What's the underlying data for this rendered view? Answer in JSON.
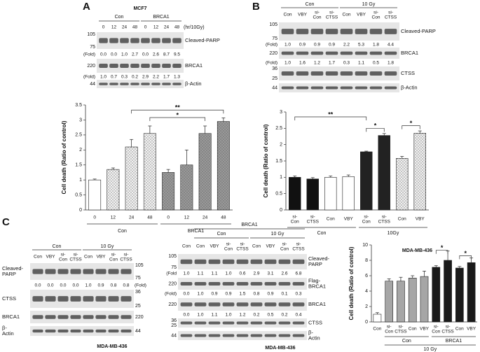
{
  "panels": [
    "A",
    "B",
    "C"
  ],
  "blots": [
    {
      "title": "MCF7",
      "groups": [
        "Con",
        "BRCA1"
      ],
      "lanes": [
        "0",
        "12",
        "24",
        "48",
        "0",
        "12",
        "24",
        "48"
      ],
      "unit": "(hr/10Gy)",
      "rows": [
        {
          "label": "Cleaved-PARP",
          "markers": [
            105,
            75
          ],
          "fold_label": "(Fold)",
          "fold": [
            "0.0",
            "0.0",
            "1.0",
            "2.7",
            "0.0",
            "2.6",
            "8.7",
            "9.5"
          ]
        },
        {
          "label": "BRCA1",
          "markers": [
            220
          ],
          "fold_label": "(Fold)",
          "fold": [
            "1.0",
            "0.7",
            "0.3",
            "0.2",
            "2.9",
            "2.2",
            "1.7",
            "1.3"
          ]
        },
        {
          "label": "β-Actin",
          "markers": [
            44
          ]
        }
      ]
    },
    {
      "groups": [
        "Con",
        "10 Gy"
      ],
      "lanes": [
        "Con",
        "VBY",
        "si-Con",
        "si-CTSS",
        "Con",
        "VBY",
        "si-Con",
        "si-CTSS"
      ],
      "rows": [
        {
          "label": "Cleaved-PARP",
          "markers": [
            105,
            75
          ],
          "fold_label": "(Fold)",
          "fold": [
            "1.0",
            "0.9",
            "0.9",
            "0.9",
            "2.2",
            "5.3",
            "1.8",
            "4.4"
          ]
        },
        {
          "label": "BRCA1",
          "markers": [
            220
          ],
          "fold_label": "(Fold)",
          "fold": [
            "1.0",
            "1.6",
            "1.2",
            "1.7",
            "0.3",
            "1.1",
            "0.5",
            "1.8"
          ]
        },
        {
          "label": "CTSS",
          "markers": [
            36,
            25
          ]
        },
        {
          "label": "β-Actin",
          "markers": [
            44
          ]
        }
      ]
    },
    {
      "groups": [
        "Con",
        "10 Gy"
      ],
      "lanes": [
        "Con",
        "VBY",
        "si-Con",
        "si-CTSS",
        "Con",
        "VBY",
        "si-Con",
        "si-CTSS"
      ],
      "rows": [
        {
          "label": "Cleaved-PARP",
          "markers": [
            105,
            75
          ],
          "fold_label": "(Fold)",
          "fold": [
            "0.0",
            "0.0",
            "0.0",
            "0.0",
            "1.0",
            "0.9",
            "0.8",
            "0.8"
          ]
        },
        {
          "label": "CTSS",
          "markers": [
            36,
            25
          ]
        },
        {
          "label": "BRCA1",
          "markers": [
            220
          ]
        },
        {
          "label": "β-Actin",
          "markers": [
            44
          ]
        }
      ],
      "caption": "MDA-MB-436"
    },
    {
      "header": "BRCA1",
      "groups": [
        "Con",
        "10 Gy"
      ],
      "lanes": [
        "Con",
        "Con",
        "VBY",
        "si-Con",
        "si-CTSS",
        "Con",
        "VBY",
        "si-Con",
        "si-CTSS"
      ],
      "rows": [
        {
          "label": "Cleaved-PARP",
          "markers": [
            105,
            75
          ],
          "fold_label": "(Fold",
          "fold": [
            "1.0",
            "1.1",
            "1.1",
            "1.0",
            "0.6",
            "2.9",
            "3.1",
            "2.6",
            "6.8"
          ]
        },
        {
          "label": "Flag-BRCA1",
          "markers": [
            220
          ],
          "fold_label": "(Fold)",
          "fold": [
            "0.0",
            "1.0",
            "0.9",
            "0.9",
            "1.5",
            "0.8",
            "0.9",
            "0.1",
            "0.3"
          ]
        },
        {
          "label": "BRCA1",
          "markers": [
            220
          ],
          "fold": [
            "0.0",
            "1.0",
            "1.1",
            "1.0",
            "1.2",
            "0.2",
            "0.5",
            "0.2",
            "0.4"
          ]
        },
        {
          "label": "CTSS",
          "markers": [
            36,
            25
          ]
        },
        {
          "label": "β-Actin",
          "markers": [
            44
          ]
        }
      ],
      "caption": "MDA-MB-436"
    }
  ],
  "chart_data": [
    {
      "type": "bar",
      "ylabel": "Cell death (Ratio of control)",
      "categories": [
        "0",
        "12",
        "24",
        "48",
        "0",
        "12",
        "24",
        "48"
      ],
      "values": [
        1.0,
        1.35,
        2.1,
        2.55,
        1.25,
        1.5,
        2.55,
        2.95
      ],
      "errors": [
        0.03,
        0.05,
        0.25,
        0.25,
        0.1,
        0.5,
        0.25,
        0.12
      ],
      "colors": [
        "#ffffff",
        "#f2f2f2",
        "#f2f2f2",
        "#f2f2f2",
        "#999999",
        "#999999",
        "#999999",
        "#999999"
      ],
      "group_labels": [
        "Con",
        "BRCA1"
      ],
      "annotations": [
        "*",
        "**"
      ],
      "ylim": [
        0,
        3.5
      ],
      "yticks": [
        0,
        0.5,
        1,
        1.5,
        2,
        2.5,
        3,
        3.5
      ]
    },
    {
      "type": "bar",
      "ylabel": "Cell death (Ratio of control)",
      "categories": [
        "si-Con",
        "si-CTSS",
        "Con",
        "VBY",
        "si-Con",
        "si-CTSS",
        "Con",
        "VBY"
      ],
      "values": [
        1.0,
        0.95,
        1.0,
        1.02,
        1.78,
        2.28,
        1.58,
        2.35
      ],
      "errors": [
        0.04,
        0.04,
        0.04,
        0.05,
        0.02,
        0.06,
        0.06,
        0.07
      ],
      "colors": [
        "#111111",
        "#111111",
        "#ffffff",
        "#ffffff",
        "#222222",
        "#222222",
        "#f0f0f0",
        "#f0f0f0"
      ],
      "group_labels": [
        "Con",
        "10Gy"
      ],
      "annotations": [
        "**",
        "*",
        "*"
      ],
      "ylim": [
        0,
        3
      ],
      "yticks": [
        0,
        0.5,
        1,
        1.5,
        2,
        2.5,
        3
      ]
    },
    {
      "type": "bar",
      "title": "MDA-MB-436",
      "ylabel": "Cell death (Ratio of control)",
      "categories": [
        "Con",
        "si-Con",
        "si-CTSS",
        "Con",
        "VBY",
        "si-Con",
        "si-CTSS",
        "Con",
        "VBY"
      ],
      "values": [
        1.0,
        5.3,
        5.3,
        5.7,
        5.9,
        7.1,
        8.0,
        7.0,
        7.7
      ],
      "errors": [
        0.2,
        0.3,
        0.5,
        0.3,
        0.7,
        0.2,
        1.2,
        0.2,
        0.6
      ],
      "colors": [
        "#ffffff",
        "#a6a6a6",
        "#a6a6a6",
        "#a6a6a6",
        "#a6a6a6",
        "#1a1a1a",
        "#1a1a1a",
        "#1a1a1a",
        "#1a1a1a"
      ],
      "group_labels": [
        "Con",
        "BRCA1"
      ],
      "supergroup": "10 Gy",
      "annotations": [
        "*",
        "*"
      ],
      "ylim": [
        0,
        10
      ],
      "yticks": [
        0,
        2,
        4,
        6,
        8,
        10
      ]
    }
  ]
}
